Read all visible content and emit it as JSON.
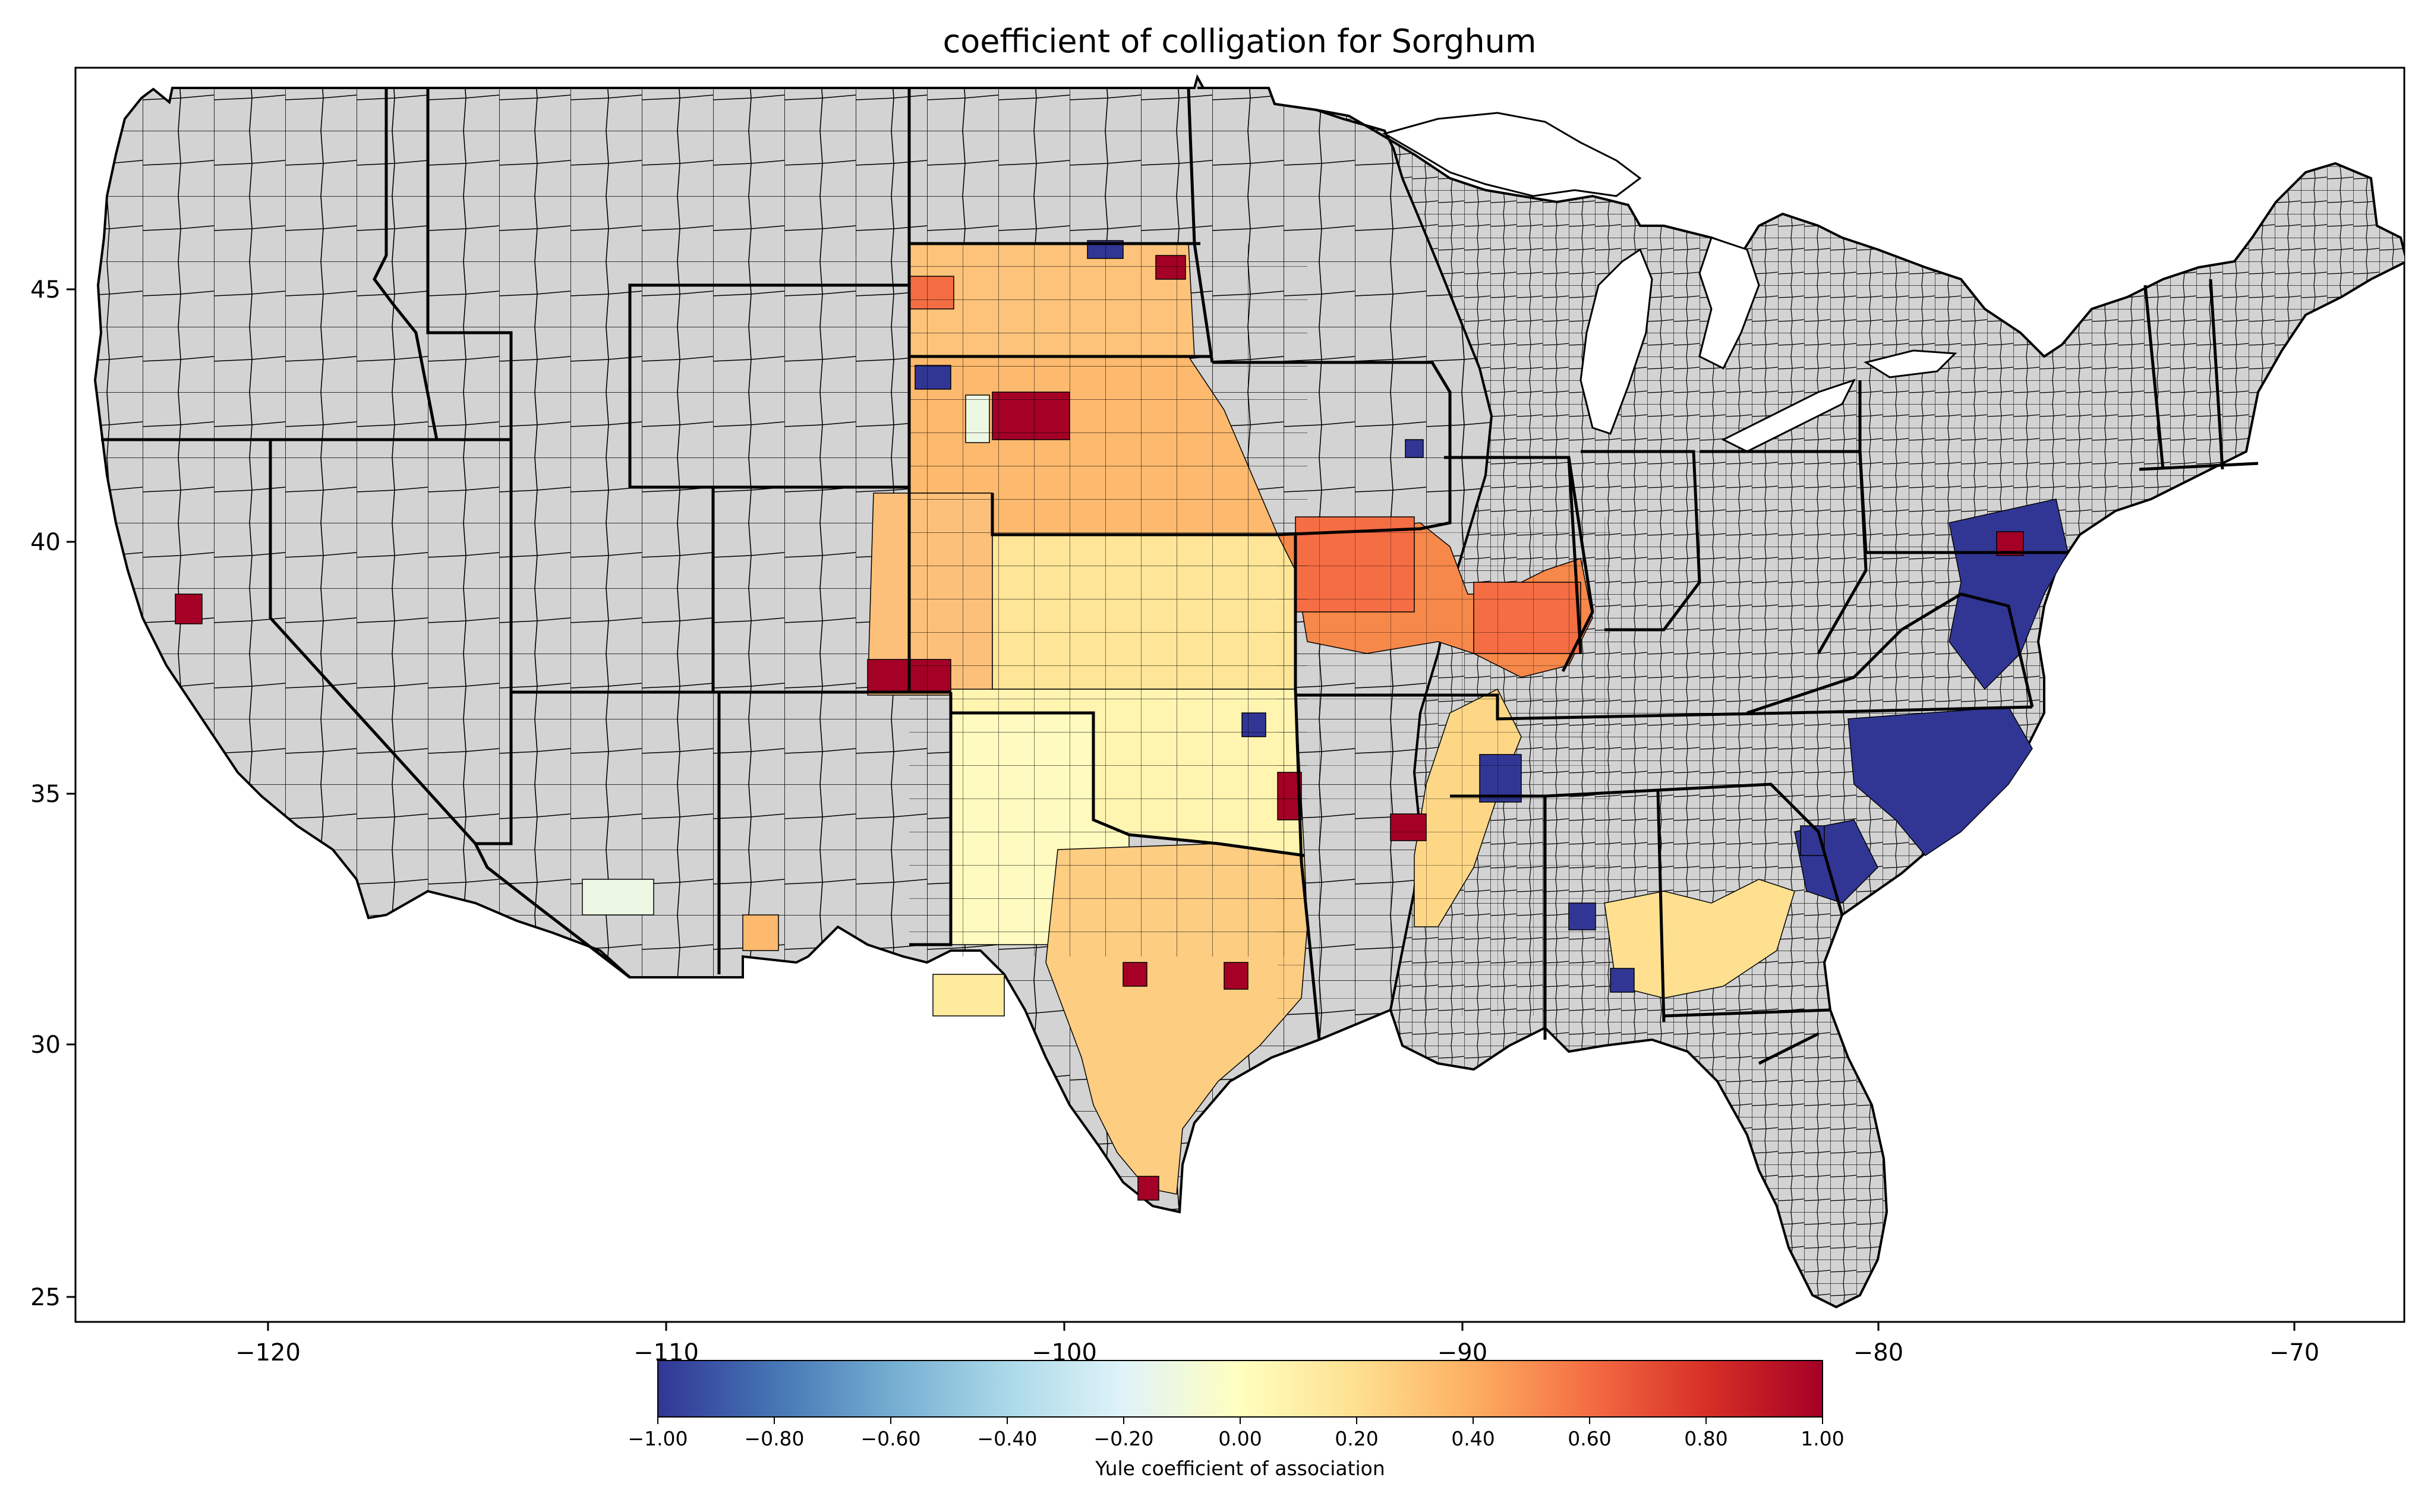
{
  "figure": {
    "title": "coefficient of colligation for Sorghum"
  },
  "axes": {
    "x_tick_labels": [
      "−120",
      "−110",
      "−100",
      "−90",
      "−80",
      "−70"
    ],
    "y_tick_labels": [
      "45",
      "40",
      "35",
      "30",
      "25"
    ],
    "x_range": [
      -125,
      -66.5
    ],
    "y_range": [
      24.5,
      49.5
    ]
  },
  "colorbar": {
    "label": "Yule coefficient of association",
    "tick_labels": [
      "−1.00",
      "−0.80",
      "−0.60",
      "−0.40",
      "−0.20",
      "0.00",
      "0.20",
      "0.40",
      "0.60",
      "0.80",
      "1.00"
    ],
    "range": [
      -1.0,
      1.0
    ],
    "colormap": "RdYlBu_r",
    "stops": [
      "#313695",
      "#4575b4",
      "#74add1",
      "#abd9e9",
      "#e0f3f8",
      "#ffffbf",
      "#fee090",
      "#fdae61",
      "#f46d43",
      "#d73027",
      "#a50026"
    ]
  },
  "colors": {
    "no_data_fill": "#d3d3d3",
    "county_border": "#000000",
    "state_border": "#000000"
  }
}
